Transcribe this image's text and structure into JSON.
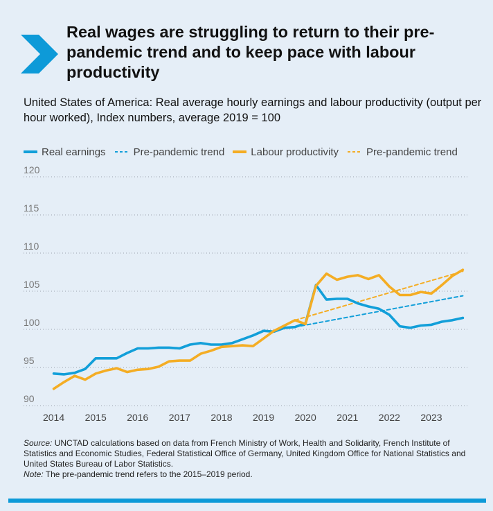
{
  "title": "Real wages are struggling to return to their pre-pandemic trend and to keep pace with labour productivity",
  "chart_data": {
    "type": "line",
    "subtitle": "United States of America: Real average hourly earnings and labour productivity (output per hour worked), Index numbers, average 2019 = 100",
    "ylim": [
      90,
      120
    ],
    "y_ticks": [
      90,
      95,
      100,
      105,
      110,
      115,
      120
    ],
    "xlim": [
      2013.875,
      2023.875
    ],
    "x_ticks": [
      2014,
      2015,
      2016,
      2017,
      2018,
      2019,
      2020,
      2021,
      2022,
      2023
    ],
    "grid": "horizontal-dotted",
    "legend_position": "top",
    "series": [
      {
        "name": "Real earnings",
        "color": "#129fd9",
        "style": "solid",
        "points": [
          [
            2014.0,
            94.2
          ],
          [
            2014.25,
            94.1
          ],
          [
            2014.5,
            94.3
          ],
          [
            2014.75,
            94.8
          ],
          [
            2015.0,
            96.2
          ],
          [
            2015.25,
            96.2
          ],
          [
            2015.5,
            96.2
          ],
          [
            2015.75,
            96.9
          ],
          [
            2016.0,
            97.5
          ],
          [
            2016.25,
            97.5
          ],
          [
            2016.5,
            97.6
          ],
          [
            2016.75,
            97.6
          ],
          [
            2017.0,
            97.5
          ],
          [
            2017.25,
            98.0
          ],
          [
            2017.5,
            98.2
          ],
          [
            2017.75,
            98.0
          ],
          [
            2018.0,
            98.0
          ],
          [
            2018.25,
            98.2
          ],
          [
            2018.5,
            98.7
          ],
          [
            2018.75,
            99.2
          ],
          [
            2019.0,
            99.8
          ],
          [
            2019.25,
            99.7
          ],
          [
            2019.5,
            100.2
          ],
          [
            2019.75,
            100.3
          ],
          [
            2020.0,
            100.8
          ],
          [
            2020.25,
            105.8
          ],
          [
            2020.5,
            103.9
          ],
          [
            2020.75,
            104.0
          ],
          [
            2021.0,
            104.0
          ],
          [
            2021.25,
            103.4
          ],
          [
            2021.5,
            103.0
          ],
          [
            2021.75,
            102.7
          ],
          [
            2022.0,
            101.9
          ],
          [
            2022.25,
            100.4
          ],
          [
            2022.5,
            100.2
          ],
          [
            2022.75,
            100.5
          ],
          [
            2023.0,
            100.6
          ],
          [
            2023.25,
            101.0
          ],
          [
            2023.5,
            101.2
          ],
          [
            2023.75,
            101.5
          ]
        ]
      },
      {
        "name": "Pre-pandemic trend",
        "color": "#129fd9",
        "style": "dashed",
        "points": [
          [
            2019.75,
            100.3
          ],
          [
            2023.75,
            104.4
          ]
        ]
      },
      {
        "name": "Labour productivity",
        "color": "#f4ad24",
        "style": "solid",
        "points": [
          [
            2014.0,
            92.2
          ],
          [
            2014.25,
            93.1
          ],
          [
            2014.5,
            93.9
          ],
          [
            2014.75,
            93.4
          ],
          [
            2015.0,
            94.2
          ],
          [
            2015.25,
            94.6
          ],
          [
            2015.5,
            94.9
          ],
          [
            2015.75,
            94.4
          ],
          [
            2016.0,
            94.7
          ],
          [
            2016.25,
            94.8
          ],
          [
            2016.5,
            95.1
          ],
          [
            2016.75,
            95.8
          ],
          [
            2017.0,
            95.9
          ],
          [
            2017.25,
            95.9
          ],
          [
            2017.5,
            96.8
          ],
          [
            2017.75,
            97.2
          ],
          [
            2018.0,
            97.7
          ],
          [
            2018.25,
            97.8
          ],
          [
            2018.5,
            97.9
          ],
          [
            2018.75,
            97.8
          ],
          [
            2019.0,
            98.8
          ],
          [
            2019.25,
            99.8
          ],
          [
            2019.5,
            100.5
          ],
          [
            2019.75,
            101.2
          ],
          [
            2020.0,
            100.7
          ],
          [
            2020.25,
            105.7
          ],
          [
            2020.5,
            107.3
          ],
          [
            2020.75,
            106.5
          ],
          [
            2021.0,
            106.9
          ],
          [
            2021.25,
            107.1
          ],
          [
            2021.5,
            106.6
          ],
          [
            2021.75,
            107.1
          ],
          [
            2022.0,
            105.6
          ],
          [
            2022.25,
            104.5
          ],
          [
            2022.5,
            104.5
          ],
          [
            2022.75,
            104.9
          ],
          [
            2023.0,
            104.7
          ],
          [
            2023.25,
            105.8
          ],
          [
            2023.5,
            107.0
          ],
          [
            2023.75,
            107.8
          ]
        ]
      },
      {
        "name": "Pre-pandemic trend",
        "color": "#f4ad24",
        "style": "dashed",
        "points": [
          [
            2019.75,
            101.2
          ],
          [
            2023.75,
            107.6
          ]
        ]
      }
    ]
  },
  "notes": {
    "source_label": "Source:",
    "source_text": " UNCTAD calculations based on data from French Ministry of Work, Health and Solidarity, French Institute of Statistics and Economic Studies, Federal Statistical Office of Germany, United Kingdom Office for National Statistics and United States Bureau of Labor Statistics.",
    "note_label": "Note:",
    "note_text": " The pre-pandemic trend refers to the 2015–2019 period."
  },
  "colors": {
    "background": "#e5eef7",
    "accent": "#0d9ad8",
    "earnings": "#129fd9",
    "productivity": "#f4ad24"
  },
  "icons": {
    "chevron": "chevron-right-icon"
  }
}
